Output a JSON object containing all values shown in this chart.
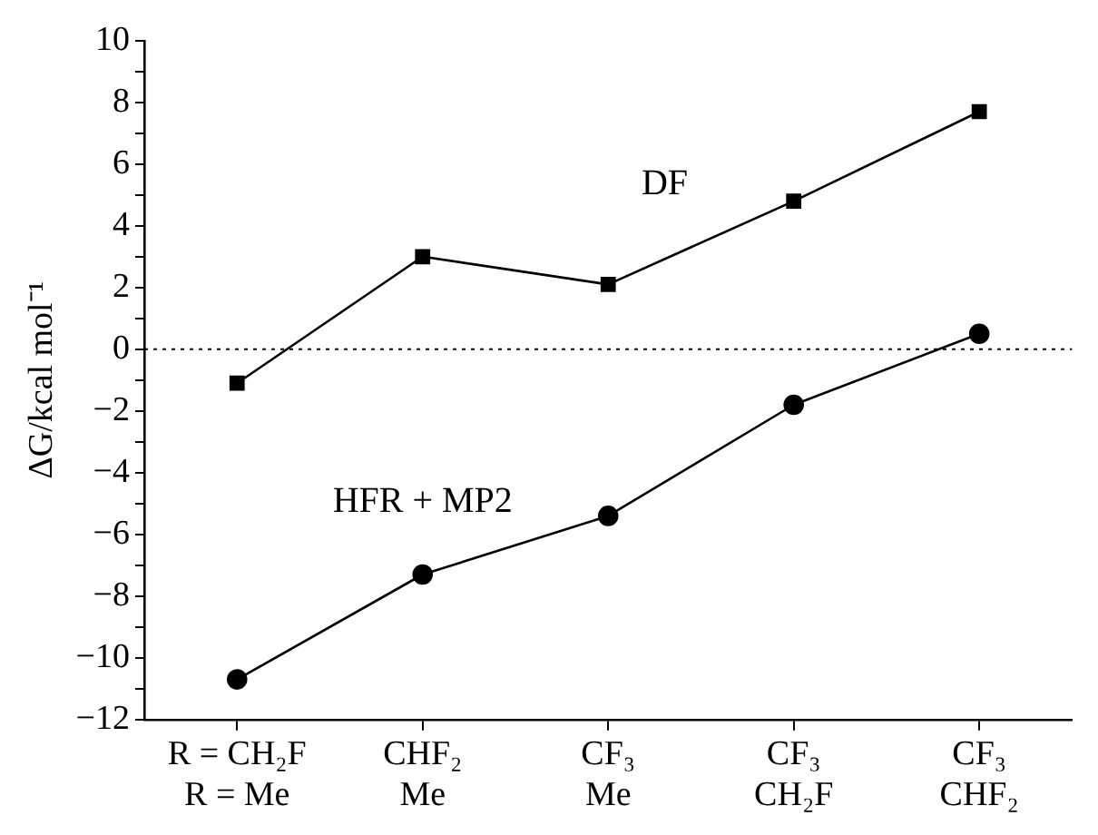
{
  "chart_data": {
    "type": "line",
    "ylabel": "ΔG/kcal mol⁻¹",
    "categories": [
      "R = CH₂F\nR = Me",
      "CHF₂\nMe",
      "CF₃\nMe",
      "CF₃\nCH₂F",
      "CF₃\nCHF₂"
    ],
    "series": [
      {
        "name": "DF",
        "color": "#000000",
        "marker": "square",
        "values": [
          -1.1,
          3.0,
          2.1,
          4.8,
          7.7
        ]
      },
      {
        "name": "HFR + MP2",
        "color": "#000000",
        "marker": "circle",
        "values": [
          -10.7,
          -7.3,
          -5.4,
          -1.8,
          0.5
        ]
      }
    ],
    "ylim": [
      -12,
      10
    ],
    "yticks": [
      -12,
      {
        "value": -11,
        "label": null
      },
      -10,
      {
        "value": -9,
        "label": null
      },
      -8,
      {
        "value": -7,
        "label": null
      },
      -6,
      {
        "value": -5,
        "label": null
      },
      -4,
      {
        "value": -3,
        "label": null
      },
      -2,
      {
        "value": -1,
        "label": null
      },
      0,
      {
        "value": 1,
        "label": null
      },
      2,
      {
        "value": 3,
        "label": null
      },
      4,
      {
        "value": 5,
        "label": null
      },
      6,
      {
        "value": 7,
        "label": null
      },
      8,
      {
        "value": 9,
        "label": null
      },
      10
    ],
    "ref_lines": [
      {
        "axis": "y",
        "value": 0,
        "line_style": "dotted",
        "color": "#000000"
      }
    ],
    "grid": false,
    "legend": false,
    "line_style": "solid"
  }
}
